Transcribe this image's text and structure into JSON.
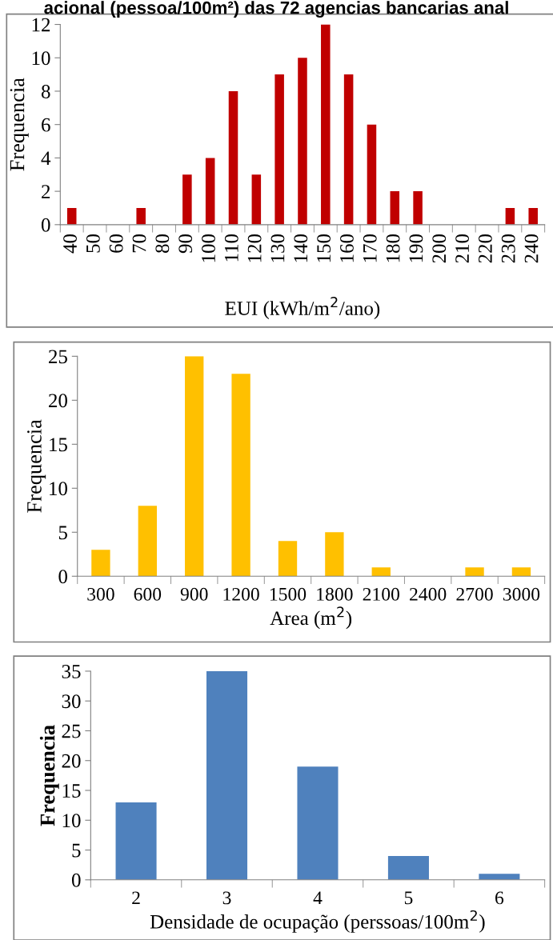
{
  "chart_data": [
    {
      "type": "bar",
      "title": "acional (pessoa/100m²) das 72 agencias bancarias anal",
      "xlabel": "EUI (kWh/m$^{2}$/ano)",
      "ylabel": "Frequencia",
      "categories": [
        "40",
        "50",
        "60",
        "70",
        "80",
        "90",
        "100",
        "110",
        "120",
        "130",
        "140",
        "150",
        "160",
        "170",
        "180",
        "190",
        "200",
        "210",
        "220",
        "230",
        "240"
      ],
      "values": [
        1,
        0,
        0,
        1,
        0,
        3,
        4,
        8,
        3,
        9,
        10,
        12,
        9,
        6,
        2,
        2,
        0,
        0,
        0,
        1,
        1
      ],
      "color": "#c00000",
      "ylim": [
        0,
        12
      ],
      "yticks": [
        0,
        2,
        4,
        6,
        8,
        10,
        12
      ],
      "grid": false,
      "legend": false
    },
    {
      "type": "bar",
      "xlabel": "Area (m$^{2}$)",
      "ylabel": "Frequencia",
      "categories": [
        "300",
        "600",
        "900",
        "1200",
        "1500",
        "1800",
        "2100",
        "2400",
        "2700",
        "3000"
      ],
      "values": [
        3,
        8,
        25,
        23,
        4,
        5,
        1,
        0,
        1,
        1
      ],
      "color": "#ffc000",
      "ylim": [
        0,
        25
      ],
      "yticks": [
        0,
        5,
        10,
        15,
        20,
        25
      ],
      "grid": false,
      "legend": false
    },
    {
      "type": "bar",
      "xlabel": "Densidade de ocupação (perssoas/100m$^{2}$)",
      "ylabel": "Frequencia",
      "categories": [
        "2",
        "3",
        "4",
        "5",
        "6"
      ],
      "values": [
        13,
        35,
        19,
        4,
        1
      ],
      "color": "#4f81bd",
      "ylim": [
        0,
        35
      ],
      "yticks": [
        0,
        5,
        10,
        15,
        20,
        25,
        30,
        35
      ],
      "grid": false,
      "legend": false
    }
  ]
}
